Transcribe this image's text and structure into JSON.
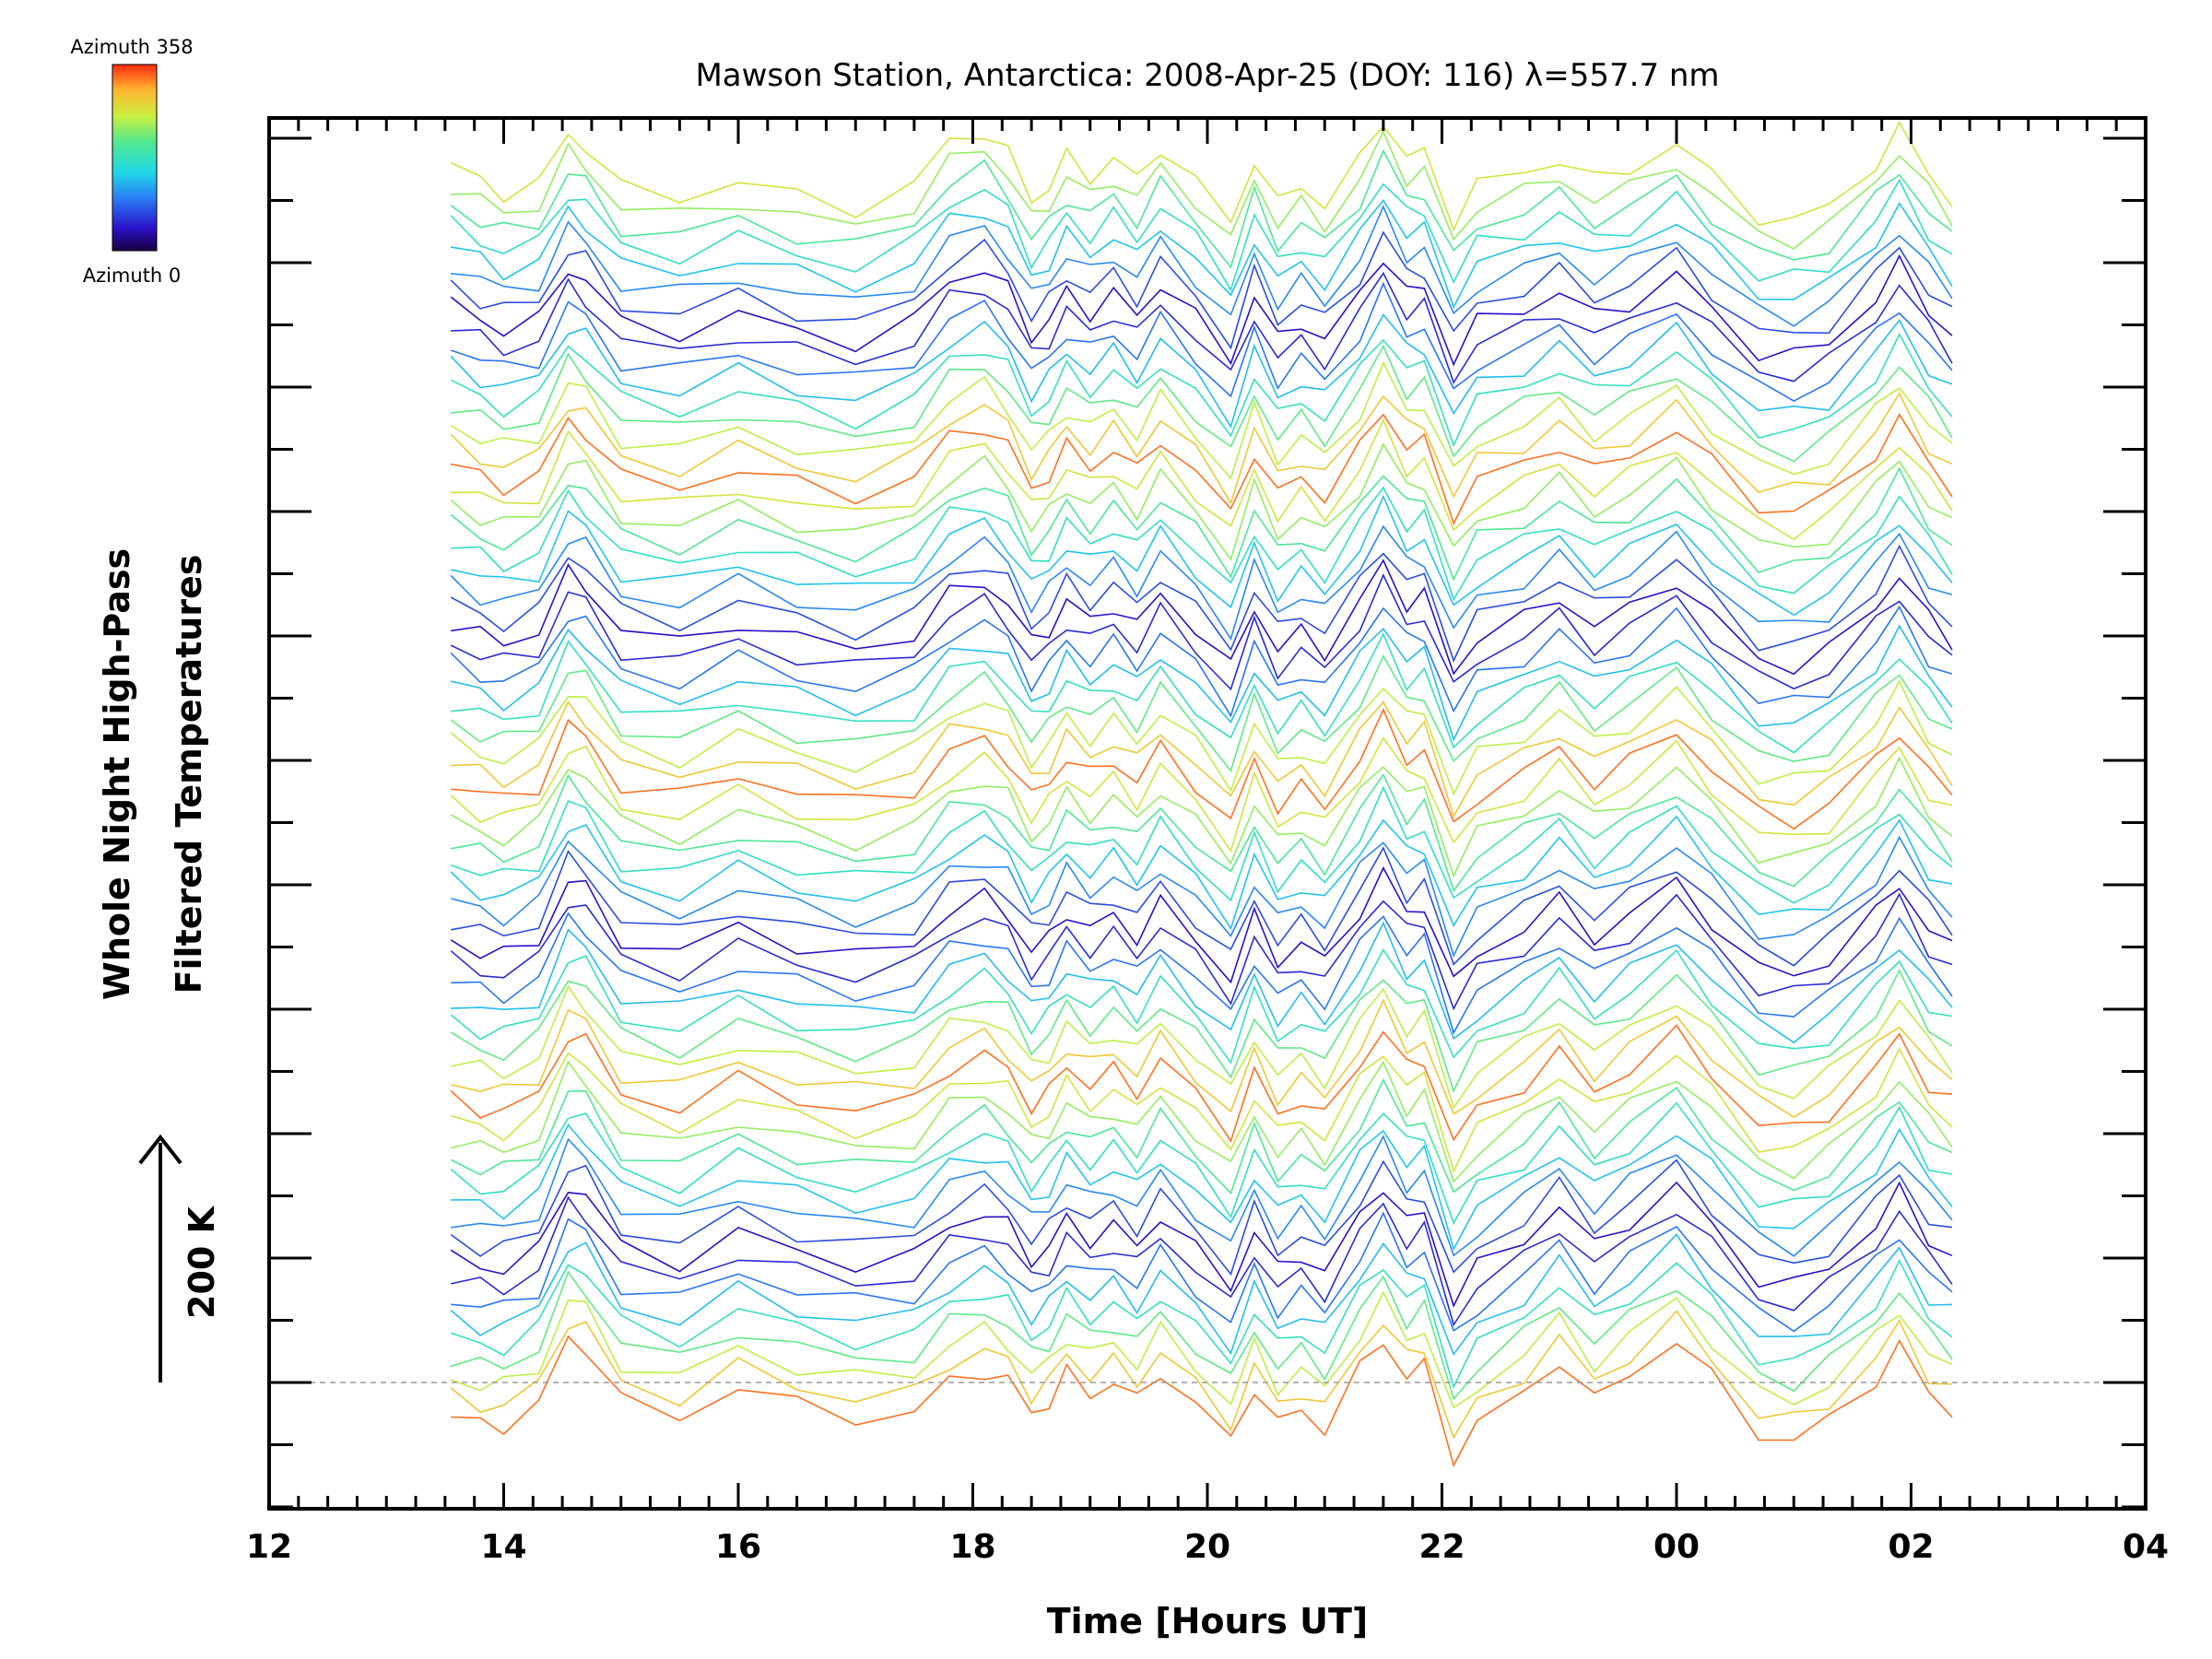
{
  "chart_data": {
    "type": "line",
    "title": "Mawson Station, Antarctica: 2008-Apr-25 (DOY: 116) λ=557.7 nm",
    "xlabel": "Time [Hours UT]",
    "ylabel_line1": "Whole Night High-Pass",
    "ylabel_line2": "Filtered Temperatures",
    "scale_label": "200 K",
    "colorbar": {
      "top_label": "Azimuth 358",
      "bottom_label": "Azimuth 0",
      "colormap": "rainbow"
    },
    "x_ticks": [
      "12",
      "14",
      "16",
      "18",
      "20",
      "22",
      "00",
      "02",
      "04"
    ],
    "xlim": [
      12,
      28
    ],
    "y_axis_tick_labels": "none",
    "line_count": 64,
    "x": [
      13.55,
      13.8,
      14.0,
      14.3,
      14.55,
      14.7,
      15.0,
      15.5,
      16.0,
      16.5,
      17.0,
      17.5,
      17.8,
      18.1,
      18.3,
      18.5,
      18.65,
      18.8,
      19.0,
      19.2,
      19.4,
      19.6,
      19.9,
      20.2,
      20.4,
      20.6,
      20.8,
      21.0,
      21.3,
      21.5,
      21.7,
      21.85,
      22.1,
      22.3,
      22.7,
      23.0,
      23.3,
      23.6,
      24.0,
      24.3,
      24.7,
      25.0,
      25.3,
      25.7,
      25.9,
      26.15,
      26.35
    ],
    "curve_data_units": "offset-stacked relative temperature; all 64 curves share the same lower base curve, and the upper base curve is added with a weight increasing from 0 to 1 with line index",
    "base_curve_lower": [
      -3.0,
      -4.0,
      -4.0,
      -1.5,
      7.0,
      6.0,
      -1.0,
      -3.0,
      1.0,
      -1.5,
      -3.0,
      -2.5,
      1.5,
      3.0,
      1.5,
      -2.5,
      -1.0,
      2.5,
      0.0,
      1.5,
      -1.0,
      3.0,
      -1.5,
      -6.0,
      1.0,
      -4.0,
      -2.0,
      -4.5,
      3.0,
      7.0,
      2.0,
      3.5,
      -8.0,
      -4.0,
      0.0,
      4.5,
      -1.0,
      2.5,
      7.0,
      2.0,
      -5.0,
      -6.0,
      -3.5,
      2.0,
      6.0,
      0.0,
      -2.0
    ],
    "base_curve_upper": [
      3.0,
      1.0,
      -0.5,
      0.5,
      7.0,
      5.5,
      0.0,
      -1.0,
      1.0,
      -1.0,
      -2.5,
      0.5,
      6.0,
      7.5,
      4.5,
      -1.5,
      0.5,
      4.0,
      1.5,
      4.0,
      1.0,
      5.5,
      1.0,
      -4.5,
      4.0,
      -2.0,
      0.5,
      -2.0,
      3.5,
      9.0,
      4.0,
      4.5,
      -4.0,
      0.5,
      2.0,
      4.0,
      1.0,
      2.5,
      6.0,
      1.5,
      -3.5,
      -4.0,
      -2.5,
      3.5,
      7.5,
      2.0,
      -1.5
    ]
  }
}
